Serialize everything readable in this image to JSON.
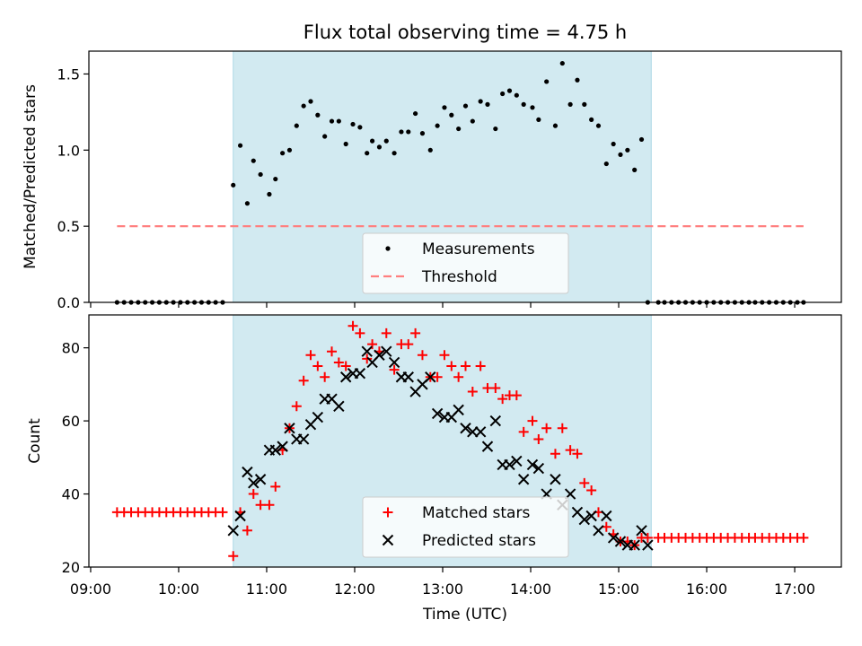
{
  "chart_data": {
    "type": "scatter",
    "title": "Flux total observing time = 4.75 h",
    "xlabel": "Time (UTC)",
    "x_unit": "hours UTC",
    "x_ticks": [
      "09:00",
      "10:00",
      "11:00",
      "12:00",
      "13:00",
      "14:00",
      "15:00",
      "16:00",
      "17:00"
    ],
    "xlim": [
      8.98,
      17.53
    ],
    "shaded_interval": [
      10.62,
      15.37
    ],
    "shade_color": "#add8e6",
    "panels": [
      {
        "ylabel": "Matched/Predicted stars",
        "ylim": [
          0,
          1.65
        ],
        "yticks": [
          "0.0",
          "0.5",
          "1.0",
          "1.5"
        ],
        "threshold": 0.5,
        "threshold_range": [
          9.3,
          17.1
        ],
        "legend": {
          "placement": "lower-center",
          "items": [
            "Measurements",
            "Threshold"
          ]
        },
        "series": [
          {
            "name": "Measurements",
            "color": "#000000",
            "marker": "dot",
            "x": [
              9.3,
              9.38,
              9.46,
              9.54,
              9.62,
              9.7,
              9.78,
              9.86,
              9.94,
              10.02,
              10.1,
              10.18,
              10.26,
              10.34,
              10.42,
              10.5,
              10.62,
              10.7,
              10.78,
              10.85,
              10.93,
              11.03,
              11.1,
              11.18,
              11.26,
              11.34,
              11.42,
              11.5,
              11.58,
              11.66,
              11.74,
              11.82,
              11.9,
              11.98,
              12.06,
              12.14,
              12.2,
              12.28,
              12.36,
              12.45,
              12.53,
              12.61,
              12.69,
              12.77,
              12.86,
              12.94,
              13.02,
              13.1,
              13.18,
              13.26,
              13.34,
              13.43,
              13.51,
              13.6,
              13.68,
              13.76,
              13.84,
              13.92,
              14.02,
              14.09,
              14.18,
              14.28,
              14.36,
              14.45,
              14.53,
              14.61,
              14.69,
              14.77,
              14.86,
              14.94,
              15.02,
              15.1,
              15.18,
              15.26,
              15.33,
              15.45,
              15.52,
              15.6,
              15.68,
              15.76,
              15.84,
              15.92,
              16.0,
              16.08,
              16.16,
              16.24,
              16.32,
              16.4,
              16.48,
              16.55,
              16.63,
              16.71,
              16.79,
              16.87,
              16.95,
              17.03,
              17.1
            ],
            "y": [
              0,
              0,
              0,
              0,
              0,
              0,
              0,
              0,
              0,
              0,
              0,
              0,
              0,
              0,
              0,
              0,
              0.77,
              1.03,
              0.65,
              0.93,
              0.84,
              0.71,
              0.81,
              0.98,
              1.0,
              1.16,
              1.29,
              1.32,
              1.23,
              1.09,
              1.19,
              1.19,
              1.04,
              1.17,
              1.15,
              0.98,
              1.06,
              1.02,
              1.06,
              0.98,
              1.12,
              1.12,
              1.24,
              1.11,
              1.0,
              1.16,
              1.28,
              1.23,
              1.14,
              1.29,
              1.19,
              1.32,
              1.3,
              1.14,
              1.37,
              1.39,
              1.36,
              1.3,
              1.28,
              1.2,
              1.45,
              1.16,
              1.57,
              1.3,
              1.46,
              1.3,
              1.2,
              1.16,
              0.91,
              1.04,
              0.97,
              1.0,
              0.87,
              1.07,
              0,
              0,
              0,
              0,
              0,
              0,
              0,
              0,
              0,
              0,
              0,
              0,
              0,
              0,
              0,
              0,
              0,
              0,
              0,
              0,
              0,
              0,
              0
            ]
          },
          {
            "name": "Threshold",
            "color": "#ff7f7f",
            "style": "dashed"
          }
        ]
      },
      {
        "ylabel": "Count",
        "ylim": [
          20,
          89
        ],
        "yticks": [
          "20",
          "40",
          "60",
          "80"
        ],
        "legend": {
          "placement": "lower-center",
          "items": [
            "Matched stars",
            "Predicted stars"
          ]
        },
        "series": [
          {
            "name": "Matched stars",
            "color": "#ff0000",
            "marker": "plus",
            "x": [
              9.3,
              9.38,
              9.46,
              9.54,
              9.62,
              9.7,
              9.78,
              9.86,
              9.94,
              10.02,
              10.1,
              10.18,
              10.26,
              10.34,
              10.42,
              10.5,
              10.62,
              10.7,
              10.78,
              10.85,
              10.93,
              11.03,
              11.1,
              11.18,
              11.26,
              11.34,
              11.42,
              11.5,
              11.58,
              11.66,
              11.74,
              11.82,
              11.9,
              11.98,
              12.06,
              12.14,
              12.2,
              12.28,
              12.36,
              12.45,
              12.53,
              12.61,
              12.69,
              12.77,
              12.86,
              12.94,
              13.02,
              13.1,
              13.18,
              13.26,
              13.34,
              13.43,
              13.51,
              13.6,
              13.68,
              13.76,
              13.84,
              13.92,
              14.02,
              14.09,
              14.18,
              14.28,
              14.36,
              14.45,
              14.53,
              14.61,
              14.69,
              14.77,
              14.86,
              14.94,
              15.02,
              15.1,
              15.18,
              15.26,
              15.33,
              15.45,
              15.52,
              15.6,
              15.68,
              15.76,
              15.84,
              15.92,
              16.0,
              16.08,
              16.16,
              16.24,
              16.32,
              16.4,
              16.48,
              16.55,
              16.63,
              16.71,
              16.79,
              16.87,
              16.95,
              17.03,
              17.1
            ],
            "y": [
              35,
              35,
              35,
              35,
              35,
              35,
              35,
              35,
              35,
              35,
              35,
              35,
              35,
              35,
              35,
              35,
              23,
              35,
              30,
              40,
              37,
              37,
              42,
              52,
              58,
              64,
              71,
              78,
              75,
              72,
              79,
              76,
              75,
              86,
              84,
              77,
              81,
              79,
              84,
              74,
              81,
              81,
              84,
              78,
              72,
              72,
              78,
              75,
              72,
              75,
              68,
              75,
              69,
              69,
              66,
              67,
              67,
              57,
              60,
              55,
              58,
              51,
              58,
              52,
              51,
              43,
              41,
              35,
              31,
              29,
              27,
              27,
              26,
              28,
              28,
              28,
              28,
              28,
              28,
              28,
              28,
              28,
              28,
              28,
              28,
              28,
              28,
              28,
              28,
              28,
              28,
              28,
              28,
              28,
              28,
              28,
              28
            ]
          },
          {
            "name": "Predicted stars",
            "color": "#000000",
            "marker": "x",
            "x": [
              10.62,
              10.7,
              10.78,
              10.85,
              10.93,
              11.03,
              11.1,
              11.18,
              11.26,
              11.34,
              11.42,
              11.5,
              11.58,
              11.66,
              11.74,
              11.82,
              11.9,
              11.98,
              12.06,
              12.14,
              12.2,
              12.28,
              12.36,
              12.45,
              12.53,
              12.61,
              12.69,
              12.77,
              12.86,
              12.94,
              13.02,
              13.1,
              13.18,
              13.26,
              13.34,
              13.43,
              13.51,
              13.6,
              13.68,
              13.76,
              13.84,
              13.92,
              14.02,
              14.09,
              14.18,
              14.28,
              14.36,
              14.45,
              14.53,
              14.61,
              14.69,
              14.77,
              14.86,
              14.94,
              15.02,
              15.1,
              15.18,
              15.26,
              15.33
            ],
            "y": [
              30,
              34,
              46,
              43,
              44,
              52,
              52,
              53,
              58,
              55,
              55,
              59,
              61,
              66,
              66,
              64,
              72,
              73,
              73,
              79,
              76,
              78,
              79,
              76,
              72,
              72,
              68,
              70,
              72,
              62,
              61,
              61,
              63,
              58,
              57,
              57,
              53,
              60,
              48,
              48,
              49,
              44,
              48,
              47,
              40,
              44,
              37,
              40,
              35,
              33,
              34,
              30,
              34,
              28,
              27,
              26,
              26,
              30,
              26
            ]
          }
        ]
      }
    ]
  }
}
